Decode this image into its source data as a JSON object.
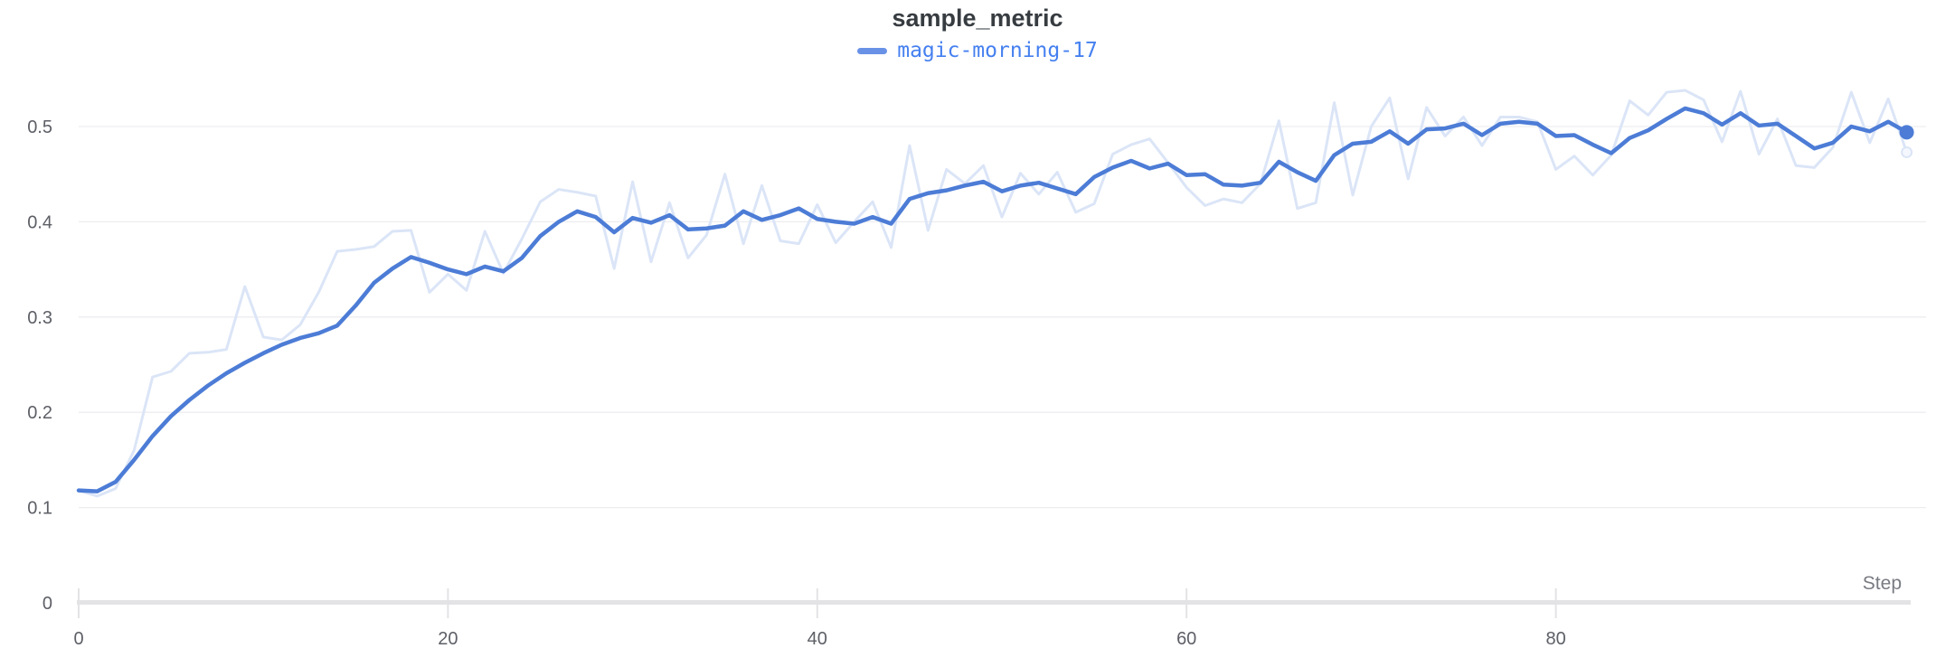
{
  "chart_data": {
    "type": "line",
    "title": "sample_metric",
    "xlabel": "Step",
    "ylabel": "",
    "xlim": [
      0,
      99.5
    ],
    "ylim": [
      0,
      0.56
    ],
    "grid": "horizontal",
    "legend_position": "top-center",
    "x_ticks": [
      0,
      20,
      40,
      60,
      80
    ],
    "x_tick_labels": [
      "0",
      "20",
      "40",
      "60",
      "80"
    ],
    "y_ticks": [
      0,
      0.1,
      0.2,
      0.3,
      0.4,
      0.5
    ],
    "y_tick_labels": [
      "0",
      "0.1",
      "0.2",
      "0.3",
      "0.4",
      "0.5"
    ],
    "colors": {
      "grid": "#ededf0",
      "axis": "#e3e3e6",
      "tick_label": "#5d5f66",
      "axis_label": "#797b82",
      "title": "#373c41",
      "legend_text": "#4580f0",
      "swatch": "#6992e7"
    },
    "x": [
      0,
      1,
      2,
      3,
      4,
      5,
      6,
      7,
      8,
      9,
      10,
      11,
      12,
      13,
      14,
      15,
      16,
      17,
      18,
      19,
      20,
      21,
      22,
      23,
      24,
      25,
      26,
      27,
      28,
      29,
      30,
      31,
      32,
      33,
      34,
      35,
      36,
      37,
      38,
      39,
      40,
      41,
      42,
      43,
      44,
      45,
      46,
      47,
      48,
      49,
      50,
      51,
      52,
      53,
      54,
      55,
      56,
      57,
      58,
      59,
      60,
      61,
      62,
      63,
      64,
      65,
      66,
      67,
      68,
      69,
      70,
      71,
      72,
      73,
      74,
      75,
      76,
      77,
      78,
      79,
      80,
      81,
      82,
      83,
      84,
      85,
      86,
      87,
      88,
      89,
      90,
      91,
      92,
      93,
      94,
      95,
      96,
      97,
      98,
      99
    ],
    "series": [
      {
        "name": "magic-morning-17",
        "role": "smoothed",
        "color": "#4c7cd6",
        "end_dot_value": 0.494,
        "values": [
          0.118,
          0.117,
          0.127,
          0.15,
          0.175,
          0.196,
          0.213,
          0.228,
          0.241,
          0.252,
          0.262,
          0.271,
          0.278,
          0.283,
          0.291,
          0.312,
          0.336,
          0.351,
          0.363,
          0.357,
          0.35,
          0.345,
          0.353,
          0.348,
          0.362,
          0.385,
          0.4,
          0.411,
          0.405,
          0.389,
          0.404,
          0.399,
          0.407,
          0.392,
          0.393,
          0.396,
          0.411,
          0.402,
          0.407,
          0.414,
          0.403,
          0.4,
          0.398,
          0.405,
          0.398,
          0.424,
          0.43,
          0.433,
          0.438,
          0.442,
          0.432,
          0.438,
          0.441,
          0.435,
          0.429,
          0.447,
          0.457,
          0.464,
          0.456,
          0.461,
          0.449,
          0.45,
          0.439,
          0.438,
          0.441,
          0.463,
          0.452,
          0.443,
          0.47,
          0.482,
          0.484,
          0.495,
          0.482,
          0.497,
          0.498,
          0.503,
          0.491,
          0.503,
          0.505,
          0.503,
          0.49,
          0.491,
          0.481,
          0.472,
          0.488,
          0.496,
          0.508,
          0.519,
          0.514,
          0.502,
          0.514,
          0.501,
          0.503,
          0.49,
          0.477,
          0.483,
          0.5,
          0.495,
          0.505,
          0.494
        ]
      },
      {
        "name": "magic-morning-17 (original)",
        "role": "original",
        "color": "#dbe5f7",
        "end_dot_value": 0.473,
        "values": [
          0.118,
          0.112,
          0.12,
          0.16,
          0.237,
          0.243,
          0.262,
          0.263,
          0.266,
          0.332,
          0.279,
          0.276,
          0.292,
          0.326,
          0.369,
          0.371,
          0.374,
          0.39,
          0.391,
          0.326,
          0.345,
          0.328,
          0.39,
          0.346,
          0.382,
          0.421,
          0.434,
          0.431,
          0.427,
          0.351,
          0.442,
          0.358,
          0.42,
          0.362,
          0.386,
          0.45,
          0.377,
          0.438,
          0.38,
          0.377,
          0.418,
          0.378,
          0.4,
          0.421,
          0.373,
          0.48,
          0.391,
          0.455,
          0.44,
          0.459,
          0.405,
          0.451,
          0.429,
          0.452,
          0.41,
          0.419,
          0.471,
          0.481,
          0.487,
          0.462,
          0.436,
          0.417,
          0.424,
          0.42,
          0.44,
          0.506,
          0.414,
          0.42,
          0.525,
          0.428,
          0.5,
          0.53,
          0.445,
          0.52,
          0.49,
          0.51,
          0.48,
          0.51,
          0.51,
          0.505,
          0.455,
          0.469,
          0.449,
          0.47,
          0.527,
          0.512,
          0.536,
          0.538,
          0.528,
          0.484,
          0.537,
          0.471,
          0.508,
          0.459,
          0.457,
          0.478,
          0.536,
          0.483,
          0.529,
          0.473
        ]
      }
    ]
  }
}
